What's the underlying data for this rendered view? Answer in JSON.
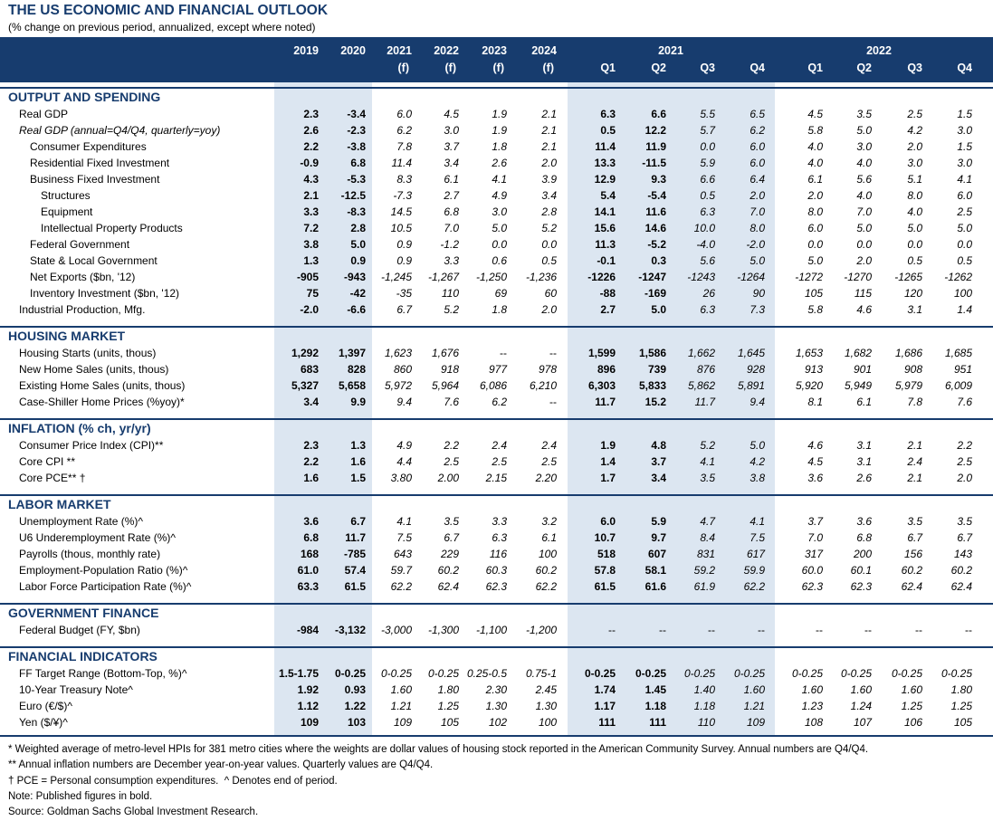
{
  "title": "THE US ECONOMIC AND FINANCIAL OUTLOOK",
  "subtitle": "(% change on previous period, annualized, except where noted)",
  "colors": {
    "navy": "#173c6e",
    "shade": "#dce6f1"
  },
  "columns": {
    "annual": [
      {
        "label": "2019",
        "sub": "",
        "published": true
      },
      {
        "label": "2020",
        "sub": "",
        "published": true
      },
      {
        "label": "2021",
        "sub": "(f)",
        "published": false
      },
      {
        "label": "2022",
        "sub": "(f)",
        "published": false
      },
      {
        "label": "2023",
        "sub": "(f)",
        "published": false
      },
      {
        "label": "2024",
        "sub": "(f)",
        "published": false
      }
    ],
    "quarterly": [
      {
        "year": "2021",
        "quarters": [
          {
            "label": "Q1",
            "published": true
          },
          {
            "label": "Q2",
            "published": true
          },
          {
            "label": "Q3",
            "published": false
          },
          {
            "label": "Q4",
            "published": false
          }
        ]
      },
      {
        "year": "2022",
        "quarters": [
          {
            "label": "Q1",
            "published": false
          },
          {
            "label": "Q2",
            "published": false
          },
          {
            "label": "Q3",
            "published": false
          },
          {
            "label": "Q4",
            "published": false
          }
        ]
      }
    ]
  },
  "sections": [
    {
      "title": "OUTPUT AND SPENDING",
      "rows": [
        {
          "label": "Real GDP",
          "level": 0,
          "values": [
            "2.3",
            "-3.4",
            "6.0",
            "4.5",
            "1.9",
            "2.1",
            "6.3",
            "6.6",
            "5.5",
            "6.5",
            "4.5",
            "3.5",
            "2.5",
            "1.5"
          ]
        },
        {
          "label": "Real GDP (annual=Q4/Q4, quarterly=yoy)",
          "level": 0,
          "emphasis": "italic",
          "values": [
            "2.6",
            "-2.3",
            "6.2",
            "3.0",
            "1.9",
            "2.1",
            "0.5",
            "12.2",
            "5.7",
            "6.2",
            "5.8",
            "5.0",
            "4.2",
            "3.0"
          ]
        },
        {
          "label": "Consumer Expenditures",
          "level": 1,
          "values": [
            "2.2",
            "-3.8",
            "7.8",
            "3.7",
            "1.8",
            "2.1",
            "11.4",
            "11.9",
            "0.0",
            "6.0",
            "4.0",
            "3.0",
            "2.0",
            "1.5"
          ]
        },
        {
          "label": "Residential Fixed Investment",
          "level": 1,
          "values": [
            "-0.9",
            "6.8",
            "11.4",
            "3.4",
            "2.6",
            "2.0",
            "13.3",
            "-11.5",
            "5.9",
            "6.0",
            "4.0",
            "4.0",
            "3.0",
            "3.0"
          ]
        },
        {
          "label": "Business Fixed Investment",
          "level": 1,
          "values": [
            "4.3",
            "-5.3",
            "8.3",
            "6.1",
            "4.1",
            "3.9",
            "12.9",
            "9.3",
            "6.6",
            "6.4",
            "6.1",
            "5.6",
            "5.1",
            "4.1"
          ]
        },
        {
          "label": "Structures",
          "level": 2,
          "values": [
            "2.1",
            "-12.5",
            "-7.3",
            "2.7",
            "4.9",
            "3.4",
            "5.4",
            "-5.4",
            "0.5",
            "2.0",
            "2.0",
            "4.0",
            "8.0",
            "6.0"
          ]
        },
        {
          "label": "Equipment",
          "level": 2,
          "values": [
            "3.3",
            "-8.3",
            "14.5",
            "6.8",
            "3.0",
            "2.8",
            "14.1",
            "11.6",
            "6.3",
            "7.0",
            "8.0",
            "7.0",
            "4.0",
            "2.5"
          ]
        },
        {
          "label": "Intellectual Property Products",
          "level": 2,
          "values": [
            "7.2",
            "2.8",
            "10.5",
            "7.0",
            "5.0",
            "5.2",
            "15.6",
            "14.6",
            "10.0",
            "8.0",
            "6.0",
            "5.0",
            "5.0",
            "5.0"
          ]
        },
        {
          "label": "Federal Government",
          "level": 1,
          "values": [
            "3.8",
            "5.0",
            "0.9",
            "-1.2",
            "0.0",
            "0.0",
            "11.3",
            "-5.2",
            "-4.0",
            "-2.0",
            "0.0",
            "0.0",
            "0.0",
            "0.0"
          ]
        },
        {
          "label": "State & Local Government",
          "level": 1,
          "values": [
            "1.3",
            "0.9",
            "0.9",
            "3.3",
            "0.6",
            "0.5",
            "-0.1",
            "0.3",
            "5.6",
            "5.0",
            "5.0",
            "2.0",
            "0.5",
            "0.5"
          ]
        },
        {
          "label": "Net Exports ($bn, '12)",
          "level": 1,
          "values": [
            "-905",
            "-943",
            "-1,245",
            "-1,267",
            "-1,250",
            "-1,236",
            "-1226",
            "-1247",
            "-1243",
            "-1264",
            "-1272",
            "-1270",
            "-1265",
            "-1262"
          ]
        },
        {
          "label": "Inventory Investment ($bn, '12)",
          "level": 1,
          "values": [
            "75",
            "-42",
            "-35",
            "110",
            "69",
            "60",
            "-88",
            "-169",
            "26",
            "90",
            "105",
            "115",
            "120",
            "100"
          ]
        },
        {
          "label": "Industrial Production, Mfg.",
          "level": 0,
          "values": [
            "-2.0",
            "-6.6",
            "6.7",
            "5.2",
            "1.8",
            "2.0",
            "2.7",
            "5.0",
            "6.3",
            "7.3",
            "5.8",
            "4.6",
            "3.1",
            "1.4"
          ]
        }
      ]
    },
    {
      "title": "HOUSING MARKET",
      "rows": [
        {
          "label": "Housing Starts (units, thous)",
          "level": 0,
          "values": [
            "1,292",
            "1,397",
            "1,623",
            "1,676",
            "--",
            "--",
            "1,599",
            "1,586",
            "1,662",
            "1,645",
            "1,653",
            "1,682",
            "1,686",
            "1,685"
          ]
        },
        {
          "label": "New Home Sales (units, thous)",
          "level": 0,
          "values": [
            "683",
            "828",
            "860",
            "918",
            "977",
            "978",
            "896",
            "739",
            "876",
            "928",
            "913",
            "901",
            "908",
            "951"
          ]
        },
        {
          "label": "Existing Home Sales (units, thous)",
          "level": 0,
          "values": [
            "5,327",
            "5,658",
            "5,972",
            "5,964",
            "6,086",
            "6,210",
            "6,303",
            "5,833",
            "5,862",
            "5,891",
            "5,920",
            "5,949",
            "5,979",
            "6,009"
          ]
        },
        {
          "label": "Case-Shiller Home Prices (%yoy)*",
          "level": 0,
          "values": [
            "3.4",
            "9.9",
            "9.4",
            "7.6",
            "6.2",
            "--",
            "11.7",
            "15.2",
            "11.7",
            "9.4",
            "8.1",
            "6.1",
            "7.8",
            "7.6"
          ]
        }
      ]
    },
    {
      "title": "INFLATION (% ch, yr/yr)",
      "rows": [
        {
          "label": "Consumer Price Index (CPI)**",
          "level": 0,
          "values": [
            "2.3",
            "1.3",
            "4.9",
            "2.2",
            "2.4",
            "2.4",
            "1.9",
            "4.8",
            "5.2",
            "5.0",
            "4.6",
            "3.1",
            "2.1",
            "2.2"
          ]
        },
        {
          "label": "Core CPI **",
          "level": 0,
          "values": [
            "2.2",
            "1.6",
            "4.4",
            "2.5",
            "2.5",
            "2.5",
            "1.4",
            "3.7",
            "4.1",
            "4.2",
            "4.5",
            "3.1",
            "2.4",
            "2.5"
          ]
        },
        {
          "label": "Core PCE** †",
          "level": 0,
          "values": [
            "1.6",
            "1.5",
            "3.80",
            "2.00",
            "2.15",
            "2.20",
            "1.7",
            "3.4",
            "3.5",
            "3.8",
            "3.6",
            "2.6",
            "2.1",
            "2.0"
          ]
        }
      ]
    },
    {
      "title": "LABOR MARKET",
      "rows": [
        {
          "label": "Unemployment Rate (%)^",
          "level": 0,
          "values": [
            "3.6",
            "6.7",
            "4.1",
            "3.5",
            "3.3",
            "3.2",
            "6.0",
            "5.9",
            "4.7",
            "4.1",
            "3.7",
            "3.6",
            "3.5",
            "3.5"
          ]
        },
        {
          "label": "U6 Underemployment Rate (%)^",
          "level": 0,
          "values": [
            "6.8",
            "11.7",
            "7.5",
            "6.7",
            "6.3",
            "6.1",
            "10.7",
            "9.7",
            "8.4",
            "7.5",
            "7.0",
            "6.8",
            "6.7",
            "6.7"
          ]
        },
        {
          "label": "Payrolls (thous, monthly rate)",
          "level": 0,
          "values": [
            "168",
            "-785",
            "643",
            "229",
            "116",
            "100",
            "518",
            "607",
            "831",
            "617",
            "317",
            "200",
            "156",
            "143"
          ]
        },
        {
          "label": "Employment-Population Ratio (%)^",
          "level": 0,
          "values": [
            "61.0",
            "57.4",
            "59.7",
            "60.2",
            "60.3",
            "60.2",
            "57.8",
            "58.1",
            "59.2",
            "59.9",
            "60.0",
            "60.1",
            "60.2",
            "60.2"
          ]
        },
        {
          "label": "Labor Force Participation Rate (%)^",
          "level": 0,
          "values": [
            "63.3",
            "61.5",
            "62.2",
            "62.4",
            "62.3",
            "62.2",
            "61.5",
            "61.6",
            "61.9",
            "62.2",
            "62.3",
            "62.3",
            "62.4",
            "62.4"
          ]
        }
      ]
    },
    {
      "title": "GOVERNMENT FINANCE",
      "rows": [
        {
          "label": "Federal Budget (FY, $bn)",
          "level": 0,
          "values": [
            "-984",
            "-3,132",
            "-3,000",
            "-1,300",
            "-1,100",
            "-1,200",
            "--",
            "--",
            "--",
            "--",
            "--",
            "--",
            "--",
            "--"
          ]
        }
      ]
    },
    {
      "title": "FINANCIAL INDICATORS",
      "rows": [
        {
          "label": "FF Target Range (Bottom-Top, %)^",
          "level": 0,
          "values": [
            "1.5-1.75",
            "0-0.25",
            "0-0.25",
            "0-0.25",
            "0.25-0.5",
            "0.75-1",
            "0-0.25",
            "0-0.25",
            "0-0.25",
            "0-0.25",
            "0-0.25",
            "0-0.25",
            "0-0.25",
            "0-0.25"
          ]
        },
        {
          "label": "10-Year Treasury Note^",
          "level": 0,
          "values": [
            "1.92",
            "0.93",
            "1.60",
            "1.80",
            "2.30",
            "2.45",
            "1.74",
            "1.45",
            "1.40",
            "1.60",
            "1.60",
            "1.60",
            "1.60",
            "1.80"
          ]
        },
        {
          "label": "Euro (€/$)^",
          "level": 0,
          "values": [
            "1.12",
            "1.22",
            "1.21",
            "1.25",
            "1.30",
            "1.30",
            "1.17",
            "1.18",
            "1.18",
            "1.21",
            "1.23",
            "1.24",
            "1.25",
            "1.25"
          ]
        },
        {
          "label": "Yen ($/¥)^",
          "level": 0,
          "values": [
            "109",
            "103",
            "109",
            "105",
            "102",
            "100",
            "111",
            "111",
            "110",
            "109",
            "108",
            "107",
            "106",
            "105"
          ]
        }
      ]
    }
  ],
  "footnotes": [
    "* Weighted average of metro-level HPIs for 381 metro cities where the weights are dollar values of housing stock reported in the American Community Survey. Annual numbers are Q4/Q4.",
    "** Annual inflation numbers are December year-on-year values. Quarterly values are Q4/Q4.",
    "† PCE = Personal consumption expenditures.  ^ Denotes end of period.",
    "Note: Published figures in bold.",
    "Source: Goldman Sachs Global Investment Research."
  ]
}
